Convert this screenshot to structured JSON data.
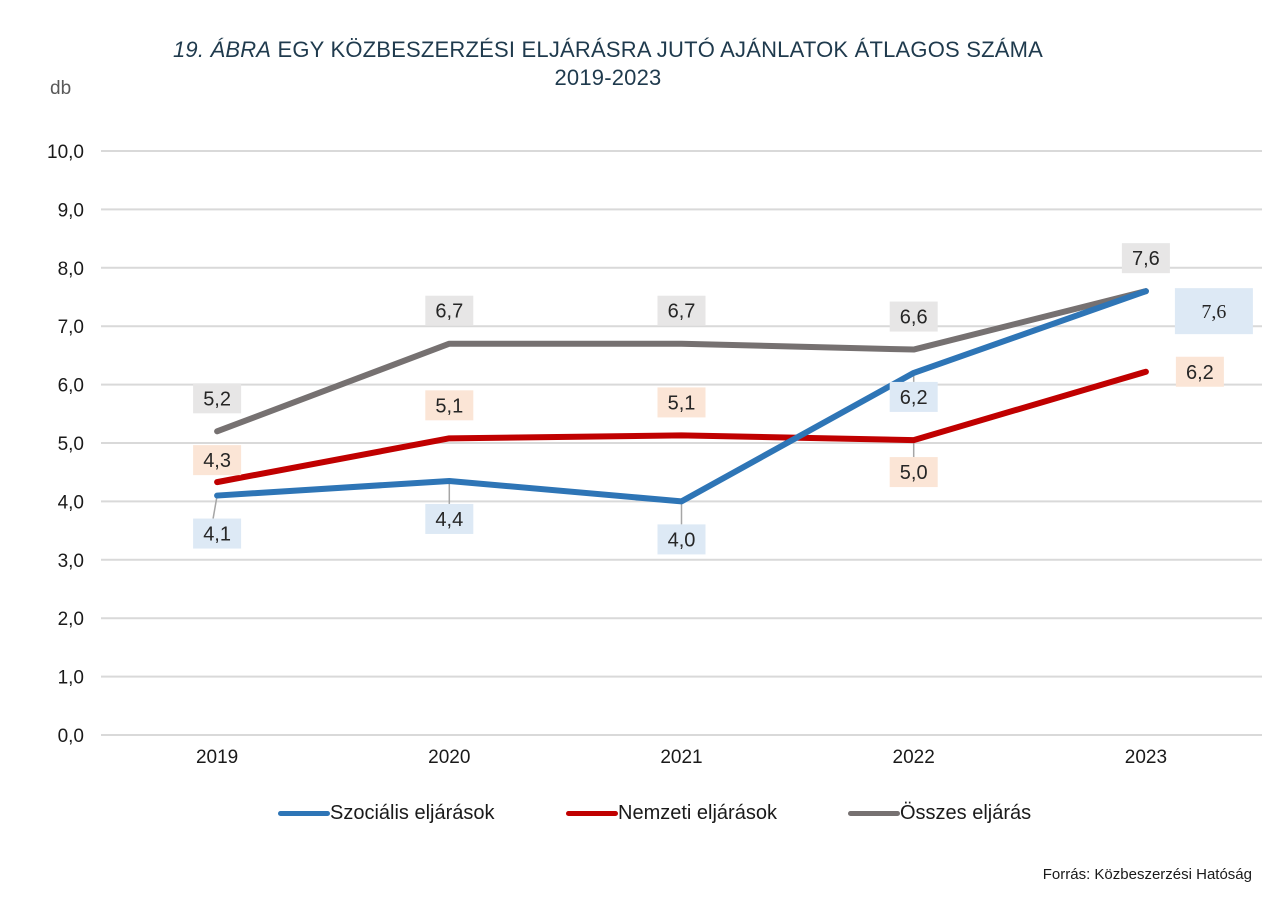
{
  "title": {
    "prefix": "19. ÁBRA",
    "main": " EGY KÖZBESZERZÉSI ELJÁRÁSRA JUTÓ AJÁNLATOK ÁTLAGOS SZÁMA",
    "years": "2019-2023"
  },
  "unit_label": "db",
  "source": "Forrás: Közbeszerzési Hatóság",
  "chart_data": {
    "type": "line",
    "title": "19. ÁBRA EGY KÖZBESZERZÉSI ELJÁRÁSRA JUTÓ AJÁNLATOK ÁTLAGOS SZÁMA 2019-2023",
    "xlabel": "",
    "ylabel": "db",
    "categories": [
      "2019",
      "2020",
      "2021",
      "2022",
      "2023"
    ],
    "ylim": [
      0,
      10
    ],
    "yticks": [
      0,
      1,
      2,
      3,
      4,
      5,
      6,
      7,
      8,
      9,
      10
    ],
    "ytick_labels": [
      "0,0",
      "1,0",
      "2,0",
      "3,0",
      "4,0",
      "5,0",
      "6,0",
      "7,0",
      "8,0",
      "9,0",
      "10,0"
    ],
    "grid": true,
    "legend_position": "bottom",
    "series": [
      {
        "name": "Szociális eljárások",
        "color": "#2e75b6",
        "label_bg": "#dde9f5",
        "values": [
          4.1,
          4.35,
          4.0,
          6.2,
          7.6
        ],
        "labels": [
          "4,1",
          "4,4",
          "4,0",
          "6,2",
          "7,6"
        ],
        "label_placement": [
          "below",
          "below",
          "below",
          "below",
          "right"
        ]
      },
      {
        "name": "Nemzeti eljárások",
        "color": "#c00000",
        "label_bg": "#fbe5d6",
        "values": [
          4.33,
          5.08,
          5.13,
          5.05,
          6.22
        ],
        "labels": [
          "4,3",
          "5,1",
          "5,1",
          "5,0",
          "6,2"
        ],
        "label_placement": [
          "above",
          "above",
          "above",
          "below",
          "right"
        ]
      },
      {
        "name": "Összes eljárás",
        "color": "#767171",
        "label_bg": "#e7e6e6",
        "values": [
          5.2,
          6.7,
          6.7,
          6.6,
          7.6
        ],
        "labels": [
          "5,2",
          "6,7",
          "6,7",
          "6,6",
          "7,6"
        ],
        "label_placement": [
          "above",
          "above",
          "above",
          "above",
          "above"
        ]
      }
    ]
  }
}
